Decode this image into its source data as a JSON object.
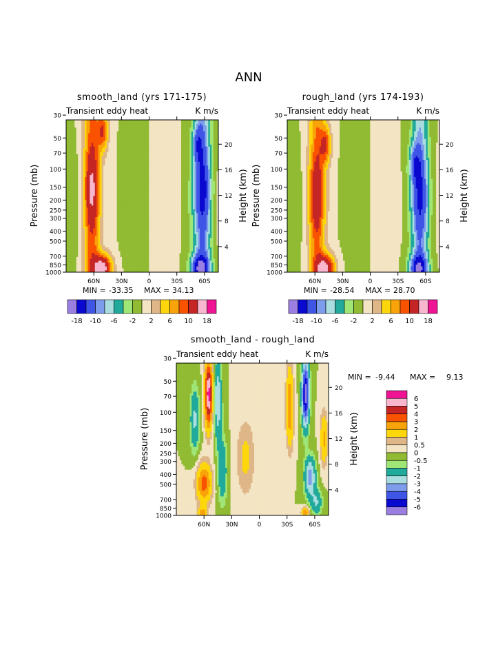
{
  "page": {
    "title": "ANN"
  },
  "chart_data": [
    {
      "type": "heatmap",
      "id": "smooth",
      "title": "smooth_land (yrs 171-175)",
      "left_string": "Transient eddy heat",
      "right_string": "K m/s",
      "ylabel": "Pressure (mb)",
      "y2label": "Height (km)",
      "x_ticks": [
        "60N",
        "30N",
        "0",
        "30S",
        "60S"
      ],
      "y_ticks": [
        "30",
        "50",
        "70",
        "100",
        "150",
        "200",
        "250",
        "300",
        "400",
        "500",
        "700",
        "850",
        "1000"
      ],
      "y2_ticks": [
        "20",
        "16",
        "12",
        "8",
        "4"
      ],
      "stats": {
        "min_label": "MIN =",
        "min": "-33.35",
        "max_label": "MAX =",
        "max": "34.13"
      },
      "colorbar_labels": [
        "-18",
        "-10",
        "-6",
        "-2",
        "2",
        "6",
        "10",
        "18"
      ],
      "colorbar_label_positions": [
        1,
        3,
        5,
        7,
        9,
        11,
        13,
        15
      ],
      "diverging_scale": 1.4,
      "field_params": {
        "scale": 21.0,
        "nh_band": [
          -62,
          13
        ],
        "nh_core": [
          -50,
          22
        ],
        "nh_sfc": [
          -50,
          13
        ],
        "sh_band": [
          58,
          -13
        ],
        "sh_core": [
          52,
          -20
        ],
        "sh_sfc": [
          55,
          -12
        ]
      }
    },
    {
      "type": "heatmap",
      "id": "rough",
      "title": "rough_land (yrs 174-193)",
      "left_string": "Transient eddy heat",
      "right_string": "K m/s",
      "ylabel": "Pressure (mb)",
      "y2label": "Height (km)",
      "x_ticks": [
        "60N",
        "30N",
        "0",
        "30S",
        "60S"
      ],
      "y_ticks": [
        "30",
        "50",
        "70",
        "100",
        "150",
        "200",
        "250",
        "300",
        "400",
        "500",
        "700",
        "850",
        "1000"
      ],
      "y2_ticks": [
        "20",
        "16",
        "12",
        "8",
        "4"
      ],
      "stats": {
        "min_label": "MIN =",
        "min": "-28.54",
        "max_label": "MAX =",
        "max": "28.70"
      },
      "colorbar_labels": [
        "-18",
        "-10",
        "-6",
        "-2",
        "2",
        "6",
        "10",
        "18"
      ],
      "colorbar_label_positions": [
        1,
        3,
        5,
        7,
        9,
        11,
        13,
        15
      ],
      "diverging_scale": 1.4,
      "field_params": {
        "scale": 19.0,
        "nh_band": [
          -58,
          12
        ],
        "nh_core": [
          -48,
          20
        ],
        "nh_sfc": [
          -48,
          12
        ],
        "sh_band": [
          54,
          -12
        ],
        "sh_core": [
          48,
          -17
        ],
        "sh_sfc": [
          52,
          -11
        ]
      }
    },
    {
      "type": "heatmap",
      "id": "diff",
      "title": "smooth_land - rough_land",
      "left_string": "Transient eddy heat",
      "right_string": "K m/s",
      "ylabel": "Pressure (mb)",
      "y2label": "Height (km)",
      "x_ticks": [
        "60N",
        "30N",
        "0",
        "30S",
        "60S"
      ],
      "y_ticks": [
        "30",
        "50",
        "70",
        "100",
        "150",
        "200",
        "250",
        "300",
        "400",
        "500",
        "700",
        "850",
        "1000"
      ],
      "y2_ticks": [
        "20",
        "16",
        "12",
        "8",
        "4"
      ],
      "stats": {
        "min_label": "MIN =",
        "min": "-9.44",
        "max_label": "MAX =",
        "max": "9.13"
      },
      "colorbar_labels": [
        "6",
        "5",
        "4",
        "3",
        "2",
        "1",
        "0.5",
        "0",
        "-0.5",
        "-1",
        "-2",
        "-3",
        "-4",
        "-5",
        "-6"
      ],
      "colorbar_levels": [
        6,
        5,
        4,
        3,
        2,
        1,
        0.5,
        0,
        -0.5,
        -1,
        -2,
        -3,
        -4,
        -5,
        -6
      ]
    }
  ],
  "palette": {
    "diverging": [
      "#9a7fe0",
      "#0a09cf",
      "#3f55e6",
      "#7d9cec",
      "#a9dde0",
      "#21aa9c",
      "#9fe676",
      "#91bb33",
      "#f3e4c3",
      "#deb687",
      "#fdd70b",
      "#f9a30b",
      "#fa5300",
      "#c52625",
      "#f9b6cf",
      "#ee1493"
    ],
    "diff": [
      "#ee1493",
      "#f9b6cf",
      "#c52625",
      "#fa5300",
      "#f9a30b",
      "#fdd70b",
      "#deb687",
      "#f3e4c3",
      "#91bb33",
      "#9fe676",
      "#21aa9c",
      "#a9dde0",
      "#7d9cec",
      "#3f55e6",
      "#0a09cf",
      "#9a7fe0"
    ]
  }
}
